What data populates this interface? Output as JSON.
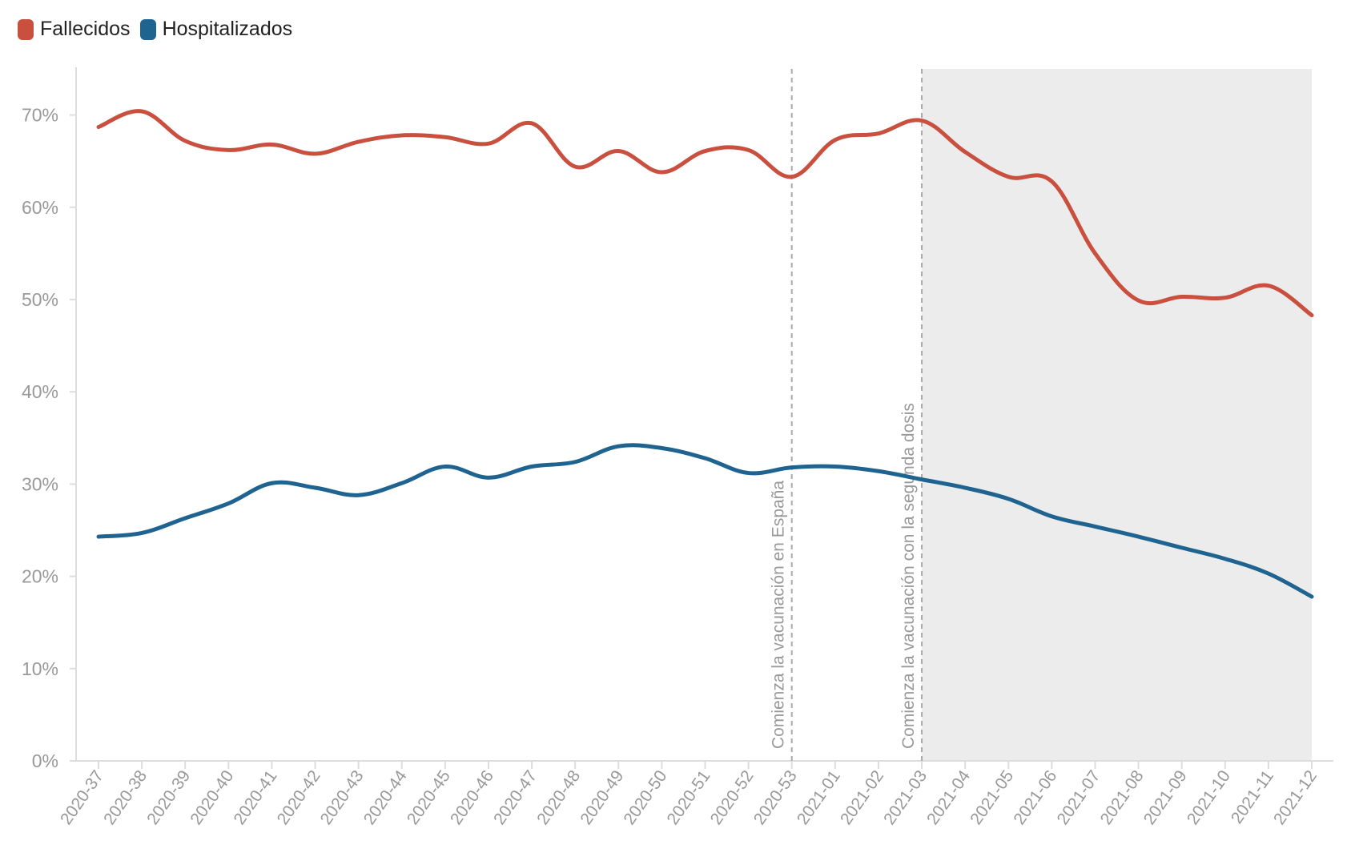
{
  "chart_data": {
    "type": "line",
    "title": "",
    "xlabel": "",
    "ylabel": "",
    "ylim": [
      0,
      75
    ],
    "y_ticks": [
      0,
      10,
      20,
      30,
      40,
      50,
      60,
      70
    ],
    "y_tick_suffix": "%",
    "categories": [
      "2020-37",
      "2020-38",
      "2020-39",
      "2020-40",
      "2020-41",
      "2020-42",
      "2020-43",
      "2020-44",
      "2020-45",
      "2020-46",
      "2020-47",
      "2020-48",
      "2020-49",
      "2020-50",
      "2020-51",
      "2020-52",
      "2020-53",
      "2021-01",
      "2021-02",
      "2021-03",
      "2021-04",
      "2021-05",
      "2021-06",
      "2021-07",
      "2021-08",
      "2021-09",
      "2021-10",
      "2021-11",
      "2021-12"
    ],
    "series": [
      {
        "name": "Fallecidos",
        "color": "#c94f3f",
        "values": [
          68.7,
          70.4,
          67.2,
          66.2,
          66.8,
          65.8,
          67.1,
          67.8,
          67.6,
          66.9,
          69.1,
          64.4,
          66.1,
          63.8,
          66.1,
          66.2,
          63.3,
          67.3,
          68.0,
          69.4,
          66.0,
          63.3,
          62.8,
          55.0,
          49.9,
          50.3,
          50.2,
          51.5,
          48.3
        ]
      },
      {
        "name": "Hospitalizados",
        "color": "#1f6391",
        "values": [
          24.3,
          24.7,
          26.3,
          27.9,
          30.1,
          29.6,
          28.8,
          30.1,
          31.9,
          30.7,
          31.9,
          32.4,
          34.1,
          33.9,
          32.8,
          31.2,
          31.8,
          31.9,
          31.4,
          30.5,
          29.6,
          28.4,
          26.5,
          25.4,
          24.3,
          23.1,
          21.9,
          20.3,
          17.8
        ]
      }
    ],
    "annotations": [
      {
        "category": "2020-53",
        "label": "Comienza la vacunación en España"
      },
      {
        "category": "2021-03",
        "label": "Comienza la vacunación con la segunda dosis"
      }
    ],
    "shaded_region": {
      "from": "2021-03",
      "to": "2021-12",
      "color": "#ececec"
    },
    "legend_position": "top-left",
    "grid": false
  }
}
